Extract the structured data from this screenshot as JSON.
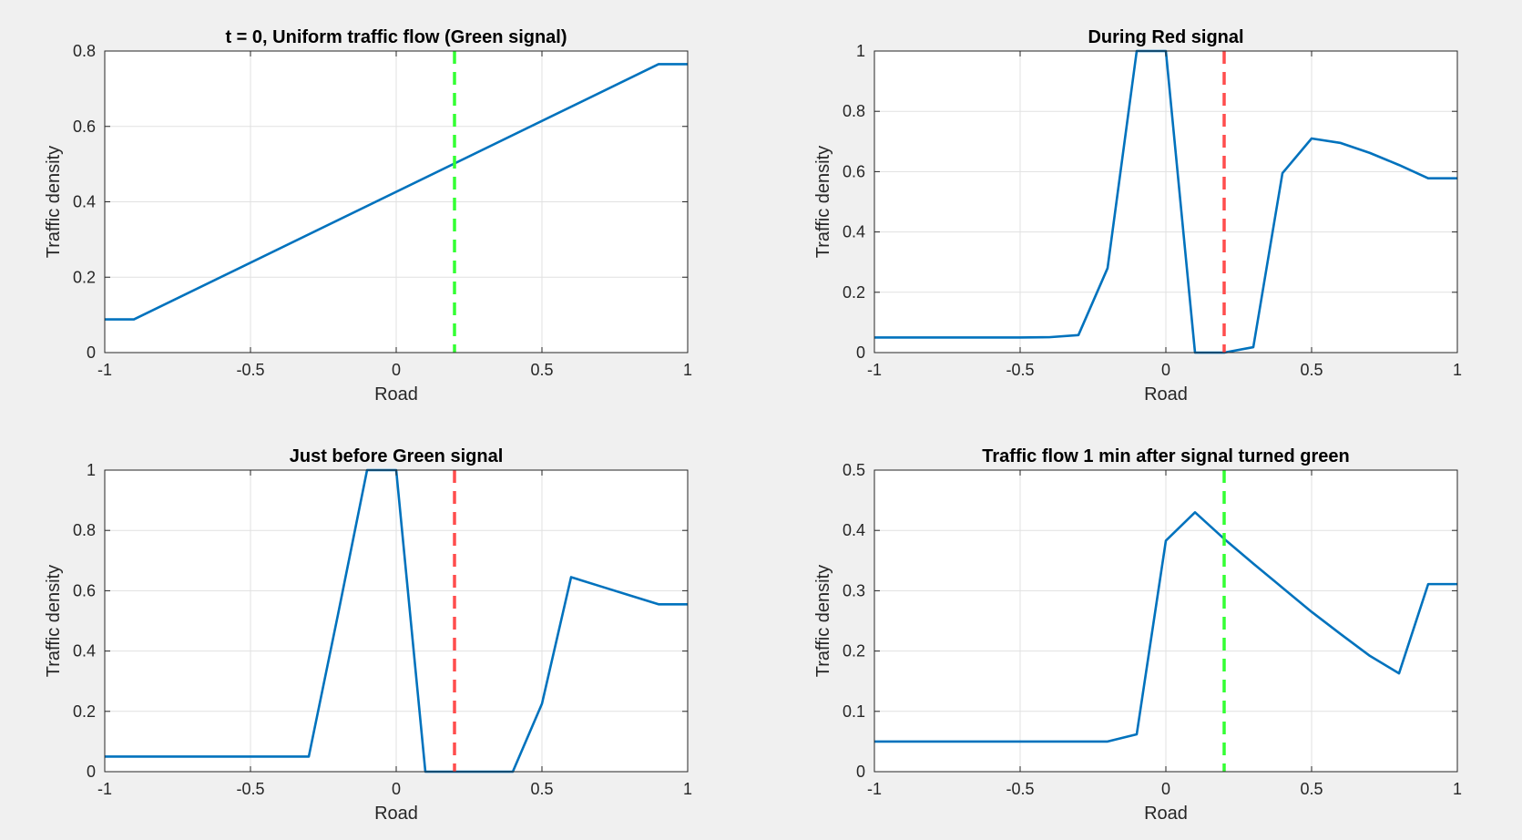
{
  "figure": {
    "background": "#f0f0f0",
    "axes_background": "#ffffff",
    "grid_color": "#e1e1e1",
    "axis_color": "#262626"
  },
  "chart_data": [
    {
      "type": "line",
      "title": "t = 0, Uniform traffic flow (Green signal)",
      "xlabel": "Road",
      "ylabel": "Traffic density",
      "xlim": [
        -1,
        1
      ],
      "ylim": [
        0,
        0.8
      ],
      "xticks": [
        -1,
        -0.5,
        0,
        0.5,
        1
      ],
      "xtick_labels": [
        "-1",
        "-0.5",
        "0",
        "0.5",
        "1"
      ],
      "yticks": [
        0,
        0.2,
        0.4,
        0.6,
        0.8
      ],
      "ytick_labels": [
        "0",
        "0.2",
        "0.4",
        "0.6",
        "0.8"
      ],
      "grid": true,
      "series": [
        {
          "color": "#0072bd",
          "x": [
            -1,
            -0.9,
            0.9,
            1
          ],
          "y": [
            0.088,
            0.088,
            0.765,
            0.765
          ]
        }
      ],
      "signal": {
        "x": 0.2,
        "color": "#33ff33",
        "style": "dashed"
      }
    },
    {
      "type": "line",
      "title": "During Red signal",
      "xlabel": "Road",
      "ylabel": "Traffic density",
      "xlim": [
        -1,
        1
      ],
      "ylim": [
        0,
        1
      ],
      "xticks": [
        -1,
        -0.5,
        0,
        0.5,
        1
      ],
      "xtick_labels": [
        "-1",
        "-0.5",
        "0",
        "0.5",
        "1"
      ],
      "yticks": [
        0,
        0.2,
        0.4,
        0.6,
        0.8,
        1
      ],
      "ytick_labels": [
        "0",
        "0.2",
        "0.4",
        "0.6",
        "0.8",
        "1"
      ],
      "grid": true,
      "series": [
        {
          "color": "#0072bd",
          "x": [
            -1,
            -0.9,
            -0.8,
            -0.7,
            -0.6,
            -0.5,
            -0.4,
            -0.3,
            -0.2,
            -0.1,
            0,
            0.1,
            0.2,
            0.3,
            0.4,
            0.5,
            0.6,
            0.7,
            0.8,
            0.9,
            1
          ],
          "y": [
            0.05,
            0.05,
            0.05,
            0.05,
            0.05,
            0.05,
            0.051,
            0.058,
            0.28,
            1,
            1,
            0,
            0,
            0.018,
            0.595,
            0.71,
            0.695,
            0.662,
            0.622,
            0.578,
            0.578
          ]
        }
      ],
      "signal": {
        "x": 0.2,
        "color": "#ff4d4d",
        "style": "dashed"
      }
    },
    {
      "type": "line",
      "title": "Just before Green signal",
      "xlabel": "Road",
      "ylabel": "Traffic density",
      "xlim": [
        -1,
        1
      ],
      "ylim": [
        0,
        1
      ],
      "xticks": [
        -1,
        -0.5,
        0,
        0.5,
        1
      ],
      "xtick_labels": [
        "-1",
        "-0.5",
        "0",
        "0.5",
        "1"
      ],
      "yticks": [
        0,
        0.2,
        0.4,
        0.6,
        0.8,
        1
      ],
      "ytick_labels": [
        "0",
        "0.2",
        "0.4",
        "0.6",
        "0.8",
        "1"
      ],
      "grid": true,
      "series": [
        {
          "color": "#0072bd",
          "x": [
            -1,
            -0.9,
            -0.8,
            -0.7,
            -0.6,
            -0.5,
            -0.4,
            -0.3,
            -0.2,
            -0.1,
            0,
            0.1,
            0.2,
            0.3,
            0.4,
            0.5,
            0.6,
            0.7,
            0.8,
            0.9,
            1
          ],
          "y": [
            0.05,
            0.05,
            0.05,
            0.05,
            0.05,
            0.05,
            0.05,
            0.05,
            0.52,
            1,
            1,
            0,
            0,
            0,
            0,
            0.225,
            0.645,
            0.615,
            0.585,
            0.555,
            0.555
          ]
        }
      ],
      "signal": {
        "x": 0.2,
        "color": "#ff4d4d",
        "style": "dashed"
      }
    },
    {
      "type": "line",
      "title": "Traffic flow 1 min after signal turned green",
      "xlabel": "Road",
      "ylabel": "Traffic density",
      "xlim": [
        -1,
        1
      ],
      "ylim": [
        0,
        0.5
      ],
      "xticks": [
        -1,
        -0.5,
        0,
        0.5,
        1
      ],
      "xtick_labels": [
        "-1",
        "-0.5",
        "0",
        "0.5",
        "1"
      ],
      "yticks": [
        0,
        0.1,
        0.2,
        0.3,
        0.4,
        0.5
      ],
      "ytick_labels": [
        "0",
        "0.1",
        "0.2",
        "0.3",
        "0.4",
        "0.5"
      ],
      "grid": true,
      "series": [
        {
          "color": "#0072bd",
          "x": [
            -1,
            -0.9,
            -0.8,
            -0.7,
            -0.6,
            -0.5,
            -0.4,
            -0.3,
            -0.2,
            -0.1,
            0,
            0.1,
            0.2,
            0.3,
            0.4,
            0.5,
            0.6,
            0.7,
            0.8,
            0.9,
            1
          ],
          "y": [
            0.05,
            0.05,
            0.05,
            0.05,
            0.05,
            0.05,
            0.05,
            0.05,
            0.05,
            0.062,
            0.383,
            0.43,
            0.386,
            0.345,
            0.305,
            0.265,
            0.228,
            0.192,
            0.163,
            0.311,
            0.311
          ]
        }
      ],
      "signal": {
        "x": 0.2,
        "color": "#33ff33",
        "style": "dashed"
      }
    }
  ]
}
